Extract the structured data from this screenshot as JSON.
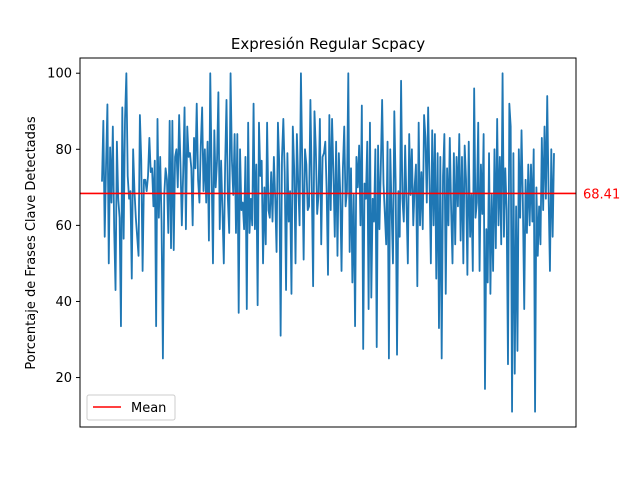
{
  "chart_data": {
    "type": "line",
    "title": "Expresión Regular Scpacy",
    "xlabel": "",
    "ylabel": "Porcentaje de Frases Clave Detectadas",
    "ylim": [
      7,
      104
    ],
    "yticks": [
      20,
      40,
      60,
      80,
      100
    ],
    "x_ticks_shown": false,
    "grid": false,
    "legend_position": "lower-left",
    "series": [
      {
        "color": "#1f77b4",
        "values": [
          71.5,
          87.5,
          57.0,
          76.0,
          91.8,
          50.0,
          80.5,
          66.0,
          86.0,
          59.0,
          43.0,
          82.0,
          67.0,
          62.0,
          33.5,
          91.0,
          56.5,
          88.0,
          100.0,
          73.0,
          67.0,
          69.0,
          46.0,
          80.0,
          69.0,
          62.0,
          57.0,
          52.0,
          89.0,
          77.0,
          48.0,
          72.0,
          72.0,
          69.0,
          73.0,
          83.0,
          74.0,
          75.0,
          65.0,
          77.0,
          33.5,
          88.0,
          62.0,
          78.0,
          61.0,
          25.0,
          68.0,
          75.0,
          72.0,
          58.0,
          87.5,
          54.0,
          87.5,
          53.5,
          78.0,
          80.0,
          70.0,
          89.0,
          76.0,
          60.0,
          74.0,
          91.0,
          59.0,
          86.0,
          78.0,
          79.0,
          75.0,
          60.0,
          83.0,
          75.0,
          92.0,
          72.0,
          66.0,
          81.0,
          91.0,
          69.0,
          80.0,
          66.0,
          82.0,
          56.0,
          100.0,
          74.0,
          50.0,
          85.0,
          70.0,
          77.0,
          95.0,
          59.0,
          77.0,
          64.0,
          50.0,
          76.0,
          93.0,
          67.0,
          58.0,
          100.0,
          77.0,
          68.0,
          84.0,
          58.0,
          84.0,
          37.0,
          80.0,
          64.0,
          66.0,
          59.0,
          78.0,
          38.0,
          87.0,
          58.0,
          67.0,
          60.0,
          92.0,
          59.0,
          76.0,
          39.0,
          87.0,
          73.0,
          77.0,
          50.0,
          70.0,
          55.0,
          87.0,
          64.0,
          62.0,
          74.0,
          61.0,
          78.0,
          67.0,
          53.0,
          87.0,
          76.0,
          31.0,
          78.0,
          88.0,
          74.0,
          43.0,
          79.0,
          61.0,
          69.0,
          42.0,
          86.0,
          75.0,
          50.0,
          84.0,
          71.0,
          60.0,
          100.0,
          76.0,
          51.0,
          80.0,
          76.0,
          64.0,
          65.0,
          93.0,
          71.0,
          44.0,
          90.0,
          80.0,
          63.0,
          68.0,
          88.0,
          55.0,
          78.0,
          79.0,
          82.0,
          69.0,
          47.0,
          89.0,
          64.0,
          88.0,
          74.0,
          57.0,
          82.0,
          52.0,
          79.0,
          69.0,
          48.0,
          75.0,
          86.0,
          65.0,
          69.0,
          100.0,
          53.0,
          75.0,
          45.0,
          68.0,
          33.5,
          78.0,
          70.0,
          81.0,
          60.0,
          91.5,
          27.5,
          71.0,
          67.0,
          82.0,
          38.0,
          87.0,
          41.0,
          67.0,
          61.0,
          80.0,
          28.0,
          81.0,
          59.0,
          75.0,
          93.0,
          71.0,
          63.0,
          55.0,
          82.0,
          25.0,
          80.0,
          64.0,
          50.0,
          90.0,
          71.0,
          26.0,
          69.0,
          57.0,
          98.0,
          67.0,
          61.0,
          81.0,
          66.0,
          50.0,
          84.0,
          68.0,
          80.0,
          60.0,
          70.0,
          76.0,
          44.0,
          87.0,
          60.0,
          74.0,
          59.0,
          89.0,
          83.0,
          66.0,
          91.0,
          72.0,
          50.0,
          85.0,
          60.0,
          84.0,
          46.0,
          79.0,
          33.0,
          78.0,
          25.0,
          73.0,
          84.0,
          42.0,
          75.0,
          60.0,
          83.0,
          64.0,
          50.0,
          79.0,
          55.0,
          78.0,
          65.0,
          84.0,
          56.0,
          78.0,
          50.0,
          81.0,
          72.0,
          47.0,
          82.0,
          57.0,
          68.0,
          48.0,
          96.0,
          62.0,
          66.0,
          87.0,
          48.0,
          76.0,
          63.0,
          84.0,
          17.0,
          59.0,
          45.0,
          79.0,
          42.0,
          68.0,
          48.0,
          80.0,
          54.0,
          88.0,
          60.0,
          78.0,
          55.0,
          100.0,
          57.0,
          75.0,
          64.0,
          23.5,
          92.0,
          86.0,
          11.0,
          79.0,
          21.0,
          65.0,
          27.0,
          80.0,
          62.0,
          85.0,
          66.0,
          38.0,
          72.0,
          58.0,
          76.0,
          60.0,
          76.0,
          61.0,
          80.0,
          11.0,
          70.0,
          52.0,
          65.0,
          55.0,
          83.0,
          64.0,
          86.0,
          67.0,
          94.0,
          68.0,
          48.0,
          80.0,
          57.0,
          79.0
        ]
      },
      {
        "name": "Mean",
        "color": "#ff0000",
        "value": 68.41,
        "value_label": "68.41"
      }
    ]
  }
}
